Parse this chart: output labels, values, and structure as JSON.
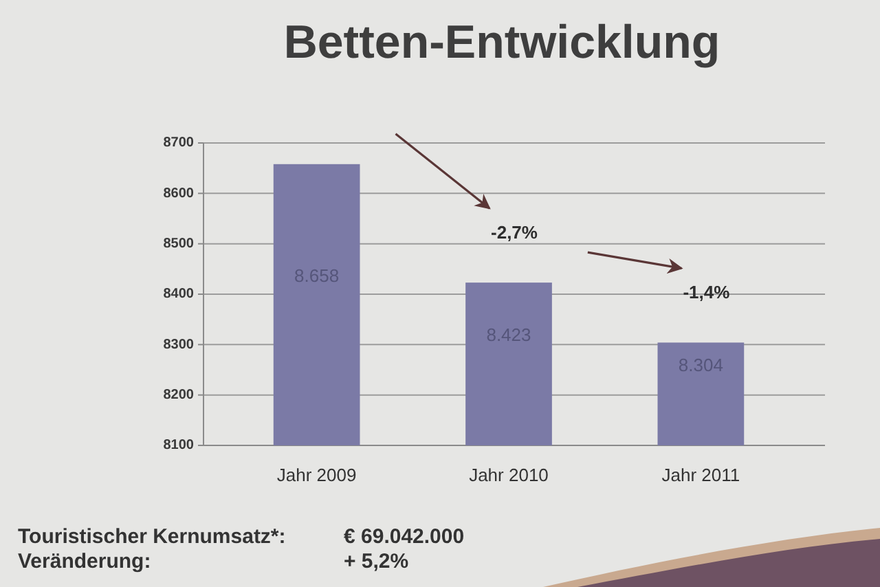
{
  "chart_data": {
    "type": "bar",
    "title": "Betten-Entwicklung",
    "categories": [
      "Jahr 2009",
      "Jahr 2010",
      "Jahr 2011"
    ],
    "values": [
      8658,
      8423,
      8304
    ],
    "value_labels": [
      "8.658",
      "8.423",
      "8.304"
    ],
    "color": "#7b7aa6",
    "ylim": [
      8100,
      8700
    ],
    "yticks": [
      8100,
      8200,
      8300,
      8400,
      8500,
      8600,
      8700
    ],
    "grid": "y",
    "annotations": [
      "-2,7%",
      "-1,4%",
      "Touristischer Kernumsatz*:",
      "€ 69.042.000",
      "Veränderung:",
      "+ 5,2%"
    ]
  }
}
